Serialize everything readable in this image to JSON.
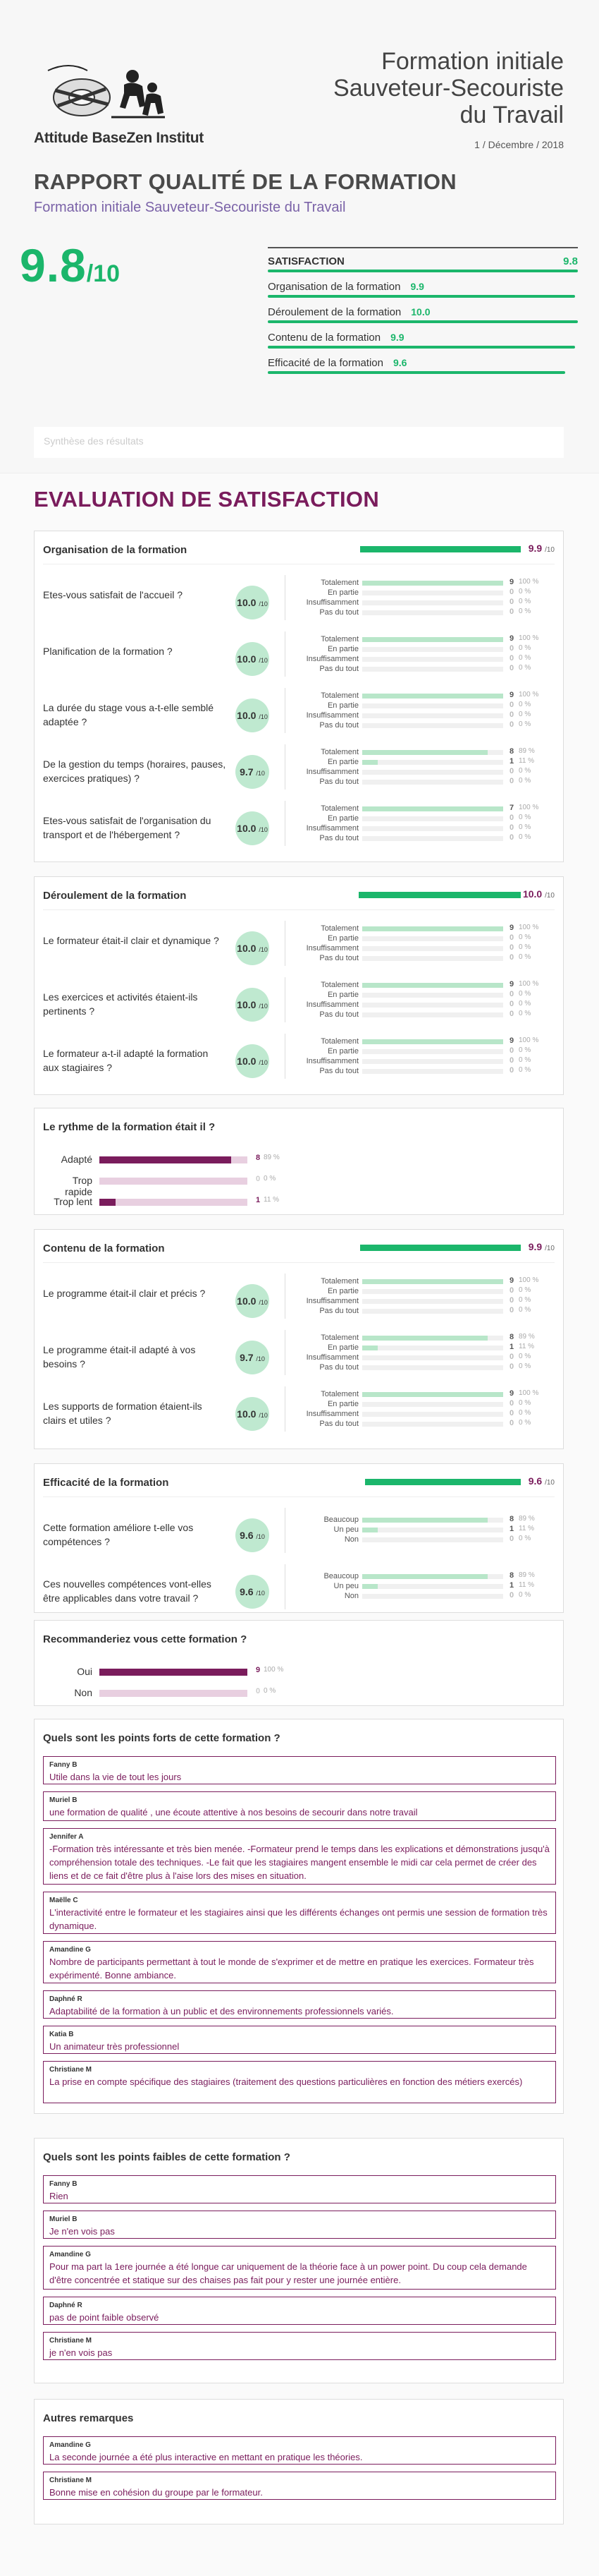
{
  "header": {
    "org": "Attitude BaseZen Institut",
    "title_lines": [
      "Formation initiale",
      "Sauveteur-Secouriste",
      "du Travail"
    ],
    "date": "1 / Décembre / 2018",
    "report_title": "RAPPORT QUALITÉ DE LA FORMATION",
    "report_subtitle": "Formation initiale Sauveteur-Secouriste du Travail",
    "score": "9.8",
    "score_denominator": "/10"
  },
  "summary": {
    "head_label": "SATISFACTION",
    "head_value": "9.8",
    "rows": [
      {
        "label": "Organisation de la formation",
        "value": "9.9",
        "fraction": 0.99
      },
      {
        "label": "Déroulement de la formation",
        "value": "10.0",
        "fraction": 1.0
      },
      {
        "label": "Contenu de la formation",
        "value": "9.9",
        "fraction": 0.99
      },
      {
        "label": "Efficacité de la formation",
        "value": "9.6",
        "fraction": 0.96
      }
    ]
  },
  "synthese_placeholder": "Synthèse des résultats",
  "section_title": "EVALUATION DE SATISFACTION",
  "out_of": "/10",
  "organisation": {
    "title": "Organisation de la formation",
    "score": "9.9",
    "fraction": 0.99,
    "questions": [
      {
        "text": "Etes-vous satisfait de l'accueil ?",
        "score": "10.0",
        "options": [
          [
            "Totalement",
            "9",
            "100 %",
            1
          ],
          [
            "En partie",
            "0",
            "0 %",
            0
          ],
          [
            "Insuffisamment",
            "0",
            "0 %",
            0
          ],
          [
            "Pas du tout",
            "0",
            "0 %",
            0
          ]
        ]
      },
      {
        "text": "Planification de la formation ?",
        "score": "10.0",
        "options": [
          [
            "Totalement",
            "9",
            "100 %",
            1
          ],
          [
            "En partie",
            "0",
            "0 %",
            0
          ],
          [
            "Insuffisamment",
            "0",
            "0 %",
            0
          ],
          [
            "Pas du tout",
            "0",
            "0 %",
            0
          ]
        ]
      },
      {
        "text": "La durée du stage vous a-t-elle semblé adaptée ?",
        "score": "10.0",
        "options": [
          [
            "Totalement",
            "9",
            "100 %",
            1
          ],
          [
            "En partie",
            "0",
            "0 %",
            0
          ],
          [
            "Insuffisamment",
            "0",
            "0 %",
            0
          ],
          [
            "Pas du tout",
            "0",
            "0 %",
            0
          ]
        ]
      },
      {
        "text": "De la gestion du temps (horaires, pauses, exercices pratiques) ?",
        "score": "9.7",
        "options": [
          [
            "Totalement",
            "8",
            "89 %",
            0.89
          ],
          [
            "En partie",
            "1",
            "11 %",
            0.11
          ],
          [
            "Insuffisamment",
            "0",
            "0 %",
            0
          ],
          [
            "Pas du tout",
            "0",
            "0 %",
            0
          ]
        ]
      },
      {
        "text": "Etes-vous satisfait de l'organisation du transport et de l'hébergement ?",
        "score": "10.0",
        "options": [
          [
            "Totalement",
            "7",
            "100 %",
            1
          ],
          [
            "En partie",
            "0",
            "0 %",
            0
          ],
          [
            "Insuffisamment",
            "0",
            "0 %",
            0
          ],
          [
            "Pas du tout",
            "0",
            "0 %",
            0
          ]
        ]
      }
    ]
  },
  "deroulement": {
    "title": "Déroulement de la formation",
    "score": "10.0",
    "fraction": 1.0,
    "questions": [
      {
        "text": "Le formateur était-il clair et dynamique ?",
        "score": "10.0",
        "options": [
          [
            "Totalement",
            "9",
            "100 %",
            1
          ],
          [
            "En partie",
            "0",
            "0 %",
            0
          ],
          [
            "Insuffisamment",
            "0",
            "0 %",
            0
          ],
          [
            "Pas du tout",
            "0",
            "0 %",
            0
          ]
        ]
      },
      {
        "text": "Les exercices et activités étaient-ils pertinents ?",
        "score": "10.0",
        "options": [
          [
            "Totalement",
            "9",
            "100 %",
            1
          ],
          [
            "En partie",
            "0",
            "0 %",
            0
          ],
          [
            "Insuffisamment",
            "0",
            "0 %",
            0
          ],
          [
            "Pas du tout",
            "0",
            "0 %",
            0
          ]
        ]
      },
      {
        "text": "Le formateur a-t-il adapté la formation aux stagiaires ?",
        "score": "10.0",
        "options": [
          [
            "Totalement",
            "9",
            "100 %",
            1
          ],
          [
            "En partie",
            "0",
            "0 %",
            0
          ],
          [
            "Insuffisamment",
            "0",
            "0 %",
            0
          ],
          [
            "Pas du tout",
            "0",
            "0 %",
            0
          ]
        ]
      }
    ]
  },
  "rythme": {
    "title": "Le rythme de la formation était il ?",
    "rows": [
      [
        "Adapté",
        "8",
        "89 %",
        0.89
      ],
      [
        "Trop rapide",
        "0",
        "0 %",
        0
      ],
      [
        "Trop lent",
        "1",
        "11 %",
        0.11
      ]
    ]
  },
  "contenu": {
    "title": "Contenu de la formation",
    "score": "9.9",
    "fraction": 0.99,
    "questions": [
      {
        "text": "Le programme était-il clair et précis ?",
        "score": "10.0",
        "options": [
          [
            "Totalement",
            "9",
            "100 %",
            1
          ],
          [
            "En partie",
            "0",
            "0 %",
            0
          ],
          [
            "Insuffisamment",
            "0",
            "0 %",
            0
          ],
          [
            "Pas du tout",
            "0",
            "0 %",
            0
          ]
        ]
      },
      {
        "text": "Le programme était-il adapté à vos besoins ?",
        "score": "9.7",
        "options": [
          [
            "Totalement",
            "8",
            "89 %",
            0.89
          ],
          [
            "En partie",
            "1",
            "11 %",
            0.11
          ],
          [
            "Insuffisamment",
            "0",
            "0 %",
            0
          ],
          [
            "Pas du tout",
            "0",
            "0 %",
            0
          ]
        ]
      },
      {
        "text": "Les supports de formation étaient-ils clairs et utiles ?",
        "score": "10.0",
        "options": [
          [
            "Totalement",
            "9",
            "100 %",
            1
          ],
          [
            "En partie",
            "0",
            "0 %",
            0
          ],
          [
            "Insuffisamment",
            "0",
            "0 %",
            0
          ],
          [
            "Pas du tout",
            "0",
            "0 %",
            0
          ]
        ]
      }
    ]
  },
  "efficacite": {
    "title": "Efficacité de la formation",
    "score": "9.6",
    "fraction": 0.96,
    "questions": [
      {
        "text": "Cette formation améliore t-elle vos compétences ?",
        "score": "9.6",
        "options": [
          [
            "Beaucoup",
            "8",
            "89 %",
            0.89
          ],
          [
            "Un peu",
            "1",
            "11 %",
            0.11
          ],
          [
            "Non",
            "0",
            "0 %",
            0
          ]
        ]
      },
      {
        "text": "Ces nouvelles compétences vont-elles être applicables dans votre travail ?",
        "score": "9.6",
        "options": [
          [
            "Beaucoup",
            "8",
            "89 %",
            0.89
          ],
          [
            "Un peu",
            "1",
            "11 %",
            0.11
          ],
          [
            "Non",
            "0",
            "0 %",
            0
          ]
        ]
      }
    ]
  },
  "recommandation": {
    "title": "Recommanderiez vous cette formation ?",
    "rows": [
      [
        "Oui",
        "9",
        "100 %",
        1
      ],
      [
        "Non",
        "0",
        "0 %",
        0
      ]
    ]
  },
  "points_forts": {
    "title": "Quels sont les points forts de cette formation ?",
    "comments": [
      {
        "who": "Fanny B",
        "msg": "Utile dans la vie de tout les jours"
      },
      {
        "who": "Muriel B",
        "msg": "une formation de qualité , une écoute attentive à nos besoins de secourir dans notre travail"
      },
      {
        "who": "Jennifer A",
        "msg": "-Formation très intéressante et très bien menée. -Formateur prend le temps dans les explications et démonstrations jusqu'à compréhension totale des techniques. -Le fait que les stagiaires mangent ensemble le midi car cela permet de créer des liens et de ce fait d'être plus à l'aise lors des mises en situation."
      },
      {
        "who": "Maëlle C",
        "msg": "L'interactivité entre le formateur et les stagiaires ainsi que les différents échanges ont permis une session de formation très dynamique."
      },
      {
        "who": "Amandine G",
        "msg": "Nombre de participants permettant à tout le monde de s'exprimer et de mettre en pratique les exercices. Formateur très expérimenté. Bonne ambiance."
      },
      {
        "who": "Daphné R",
        "msg": "Adaptabilité de la formation à un public et des environnements professionnels variés."
      },
      {
        "who": "Katia B",
        "msg": "Un animateur très professionnel"
      },
      {
        "who": "Christiane M",
        "msg": "La prise en compte spécifique des stagiaires (traitement des questions particulières en fonction des métiers exercés)"
      }
    ]
  },
  "points_faibles": {
    "title": "Quels sont les points faibles de cette formation ?",
    "comments": [
      {
        "who": "Fanny B",
        "msg": "Rien"
      },
      {
        "who": "Muriel B",
        "msg": "Je n'en vois pas"
      },
      {
        "who": "Amandine G",
        "msg": "Pour ma part la 1ere journée a été longue car uniquement de la théorie face à un power point. Du coup cela demande d'être concentrée et statique sur des chaises pas fait pour y rester une journée entière."
      },
      {
        "who": "Daphné R",
        "msg": "pas de point faible observé"
      },
      {
        "who": "Christiane M",
        "msg": "je n'en vois pas"
      }
    ]
  },
  "autres": {
    "title": "Autres remarques",
    "comments": [
      {
        "who": "Amandine G",
        "msg": "La seconde journée a été plus interactive en mettant en pratique les théories."
      },
      {
        "who": "Christiane M",
        "msg": "Bonne mise en cohésion du groupe par le formateur."
      }
    ]
  },
  "colors": {
    "green": "#1bb66b",
    "plum": "#7a1c5c",
    "violet": "#7b63a8"
  },
  "icons": {
    "logo": "lifesaver-figures-logo"
  }
}
